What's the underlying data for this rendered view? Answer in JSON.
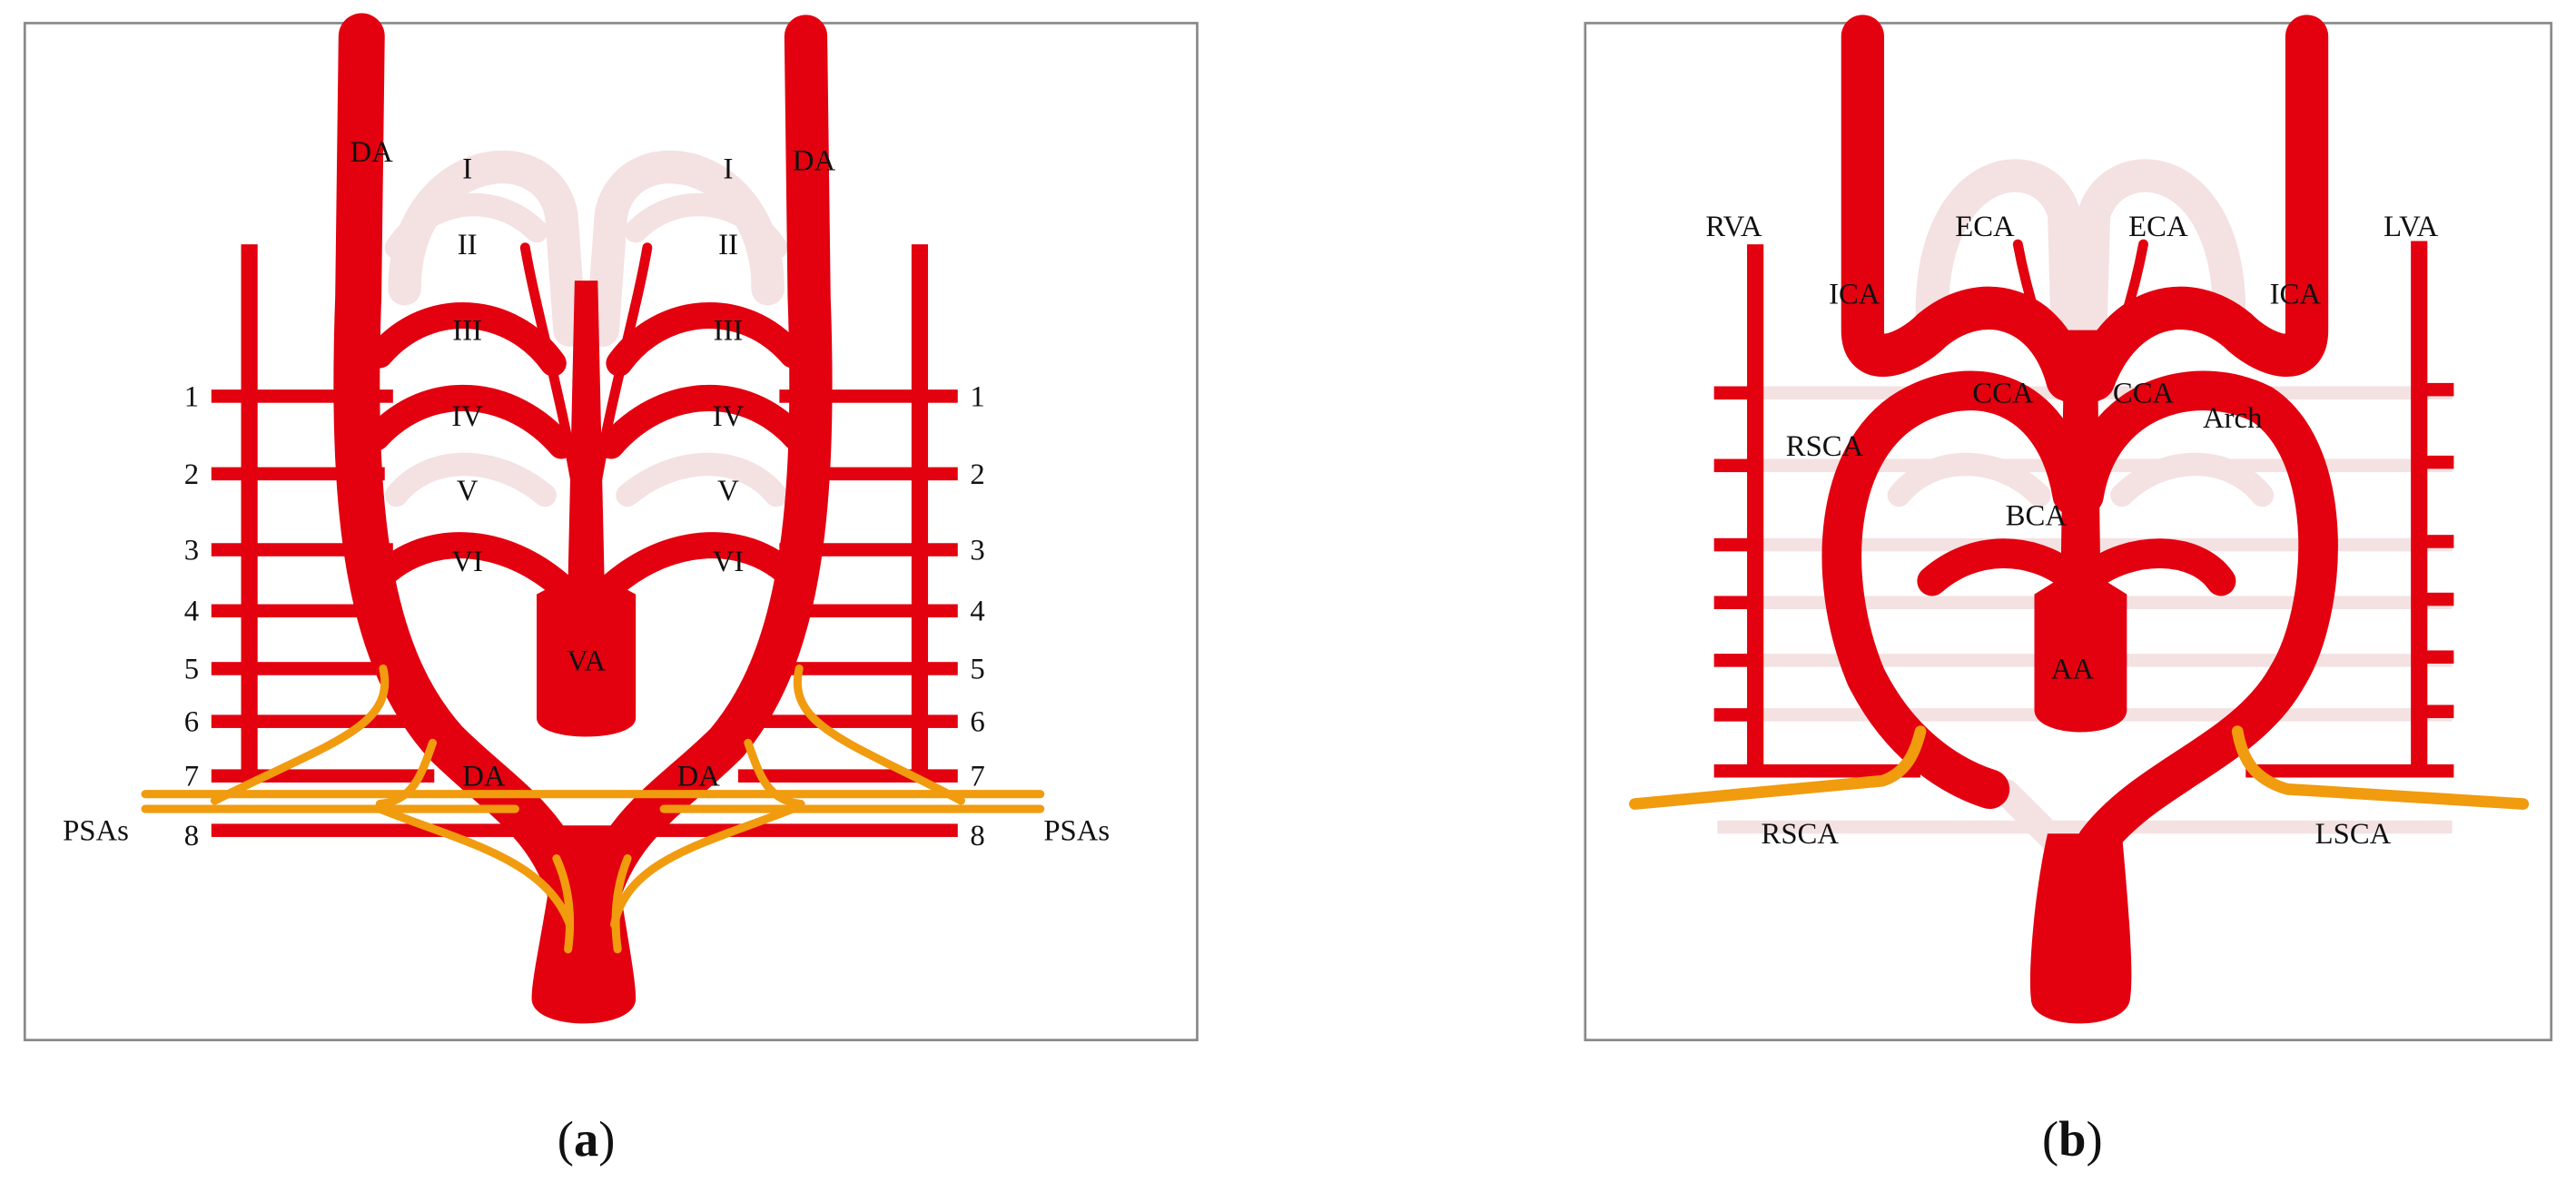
{
  "colors": {
    "artery": "#e3000f",
    "regressed_vessel": "#f4e1e2",
    "nerve": "#f19b0f",
    "frame": "#8a8a8a"
  },
  "panel_a": {
    "caption": "a",
    "labels": {
      "da_top_left": "DA",
      "da_top_right": "DA",
      "arch_I_left": "I",
      "arch_I_right": "I",
      "arch_II_left": "II",
      "arch_II_right": "II",
      "arch_III_left": "III",
      "arch_III_right": "III",
      "arch_IV_left": "IV",
      "arch_IV_right": "IV",
      "arch_V_left": "V",
      "arch_V_right": "V",
      "arch_VI_left": "VI",
      "arch_VI_right": "VI",
      "va": "VA",
      "da_bottom_left": "DA",
      "da_bottom_right": "DA",
      "psas_left": "PSAs",
      "psas_right": "PSAs"
    },
    "segments": [
      "1",
      "2",
      "3",
      "4",
      "5",
      "6",
      "7",
      "8"
    ]
  },
  "panel_b": {
    "caption": "b",
    "labels": {
      "rva": "RVA",
      "eca_left": "ECA",
      "eca_right": "ECA",
      "lva": "LVA",
      "ica_left": "ICA",
      "ica_right": "ICA",
      "cca_left": "CCA",
      "cca_right": "CCA",
      "arch": "Arch",
      "rsca_top": "RSCA",
      "bca": "BCA",
      "aa": "AA",
      "rsca_bottom": "RSCA",
      "lsca": "LSCA"
    }
  }
}
